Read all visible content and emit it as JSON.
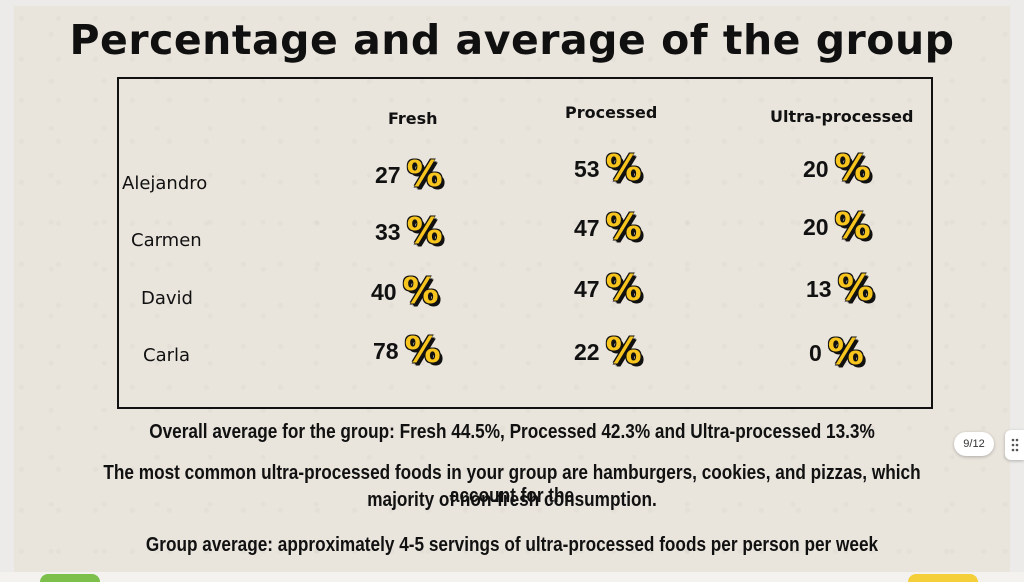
{
  "slide": {
    "title": "Percentage and average of the group",
    "columns": [
      "Fresh",
      "Processed",
      "Ultra-processed"
    ],
    "rows": [
      {
        "name": "Alejandro",
        "values": [
          "27",
          "53",
          "20"
        ]
      },
      {
        "name": "Carmen",
        "values": [
          "33",
          "47",
          "20"
        ]
      },
      {
        "name": "David",
        "values": [
          "40",
          "47",
          "13"
        ]
      },
      {
        "name": "Carla",
        "values": [
          "78",
          "22",
          "0"
        ]
      }
    ],
    "percent_symbol": "%",
    "overall_average": "Overall average for the group: Fresh 44.5%, Processed 42.3% and Ultra-processed 13.3%",
    "common_foods_line1": "The most common ultra-processed foods in your group are hamburgers, cookies, and pizzas, which account for the",
    "common_foods_line2": "majority of non-fresh consumption.",
    "servings": "Group average: approximately 4-5 servings of ultra-processed foods per person per week"
  },
  "viewer": {
    "page_indicator": "9/12",
    "handle_icon": "drag-dots-icon"
  }
}
